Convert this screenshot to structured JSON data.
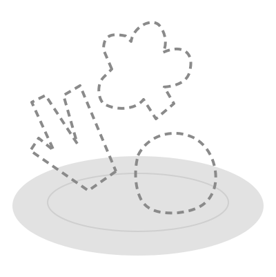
{
  "colors": {
    "background": "#ffffff",
    "plate_fill": "#e2e2e2",
    "plate_rim": "#cfcfcf",
    "dash_stroke": "#8a8a8a"
  },
  "illustration": {
    "icon": "empty-plate-dashed-food-icon"
  }
}
